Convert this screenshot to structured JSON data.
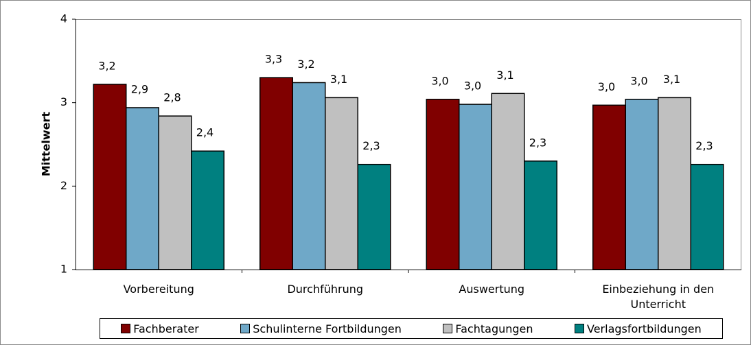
{
  "chart_data": {
    "type": "bar",
    "y_label": "Mittelwert",
    "categories": [
      "Vorbereitung",
      "Durchführung",
      "Auswertung",
      "Einbeziehung in den Unterricht"
    ],
    "series": [
      {
        "name": "Fachberater",
        "color": "#800000",
        "values": [
          3.22,
          3.3,
          3.04,
          2.97
        ],
        "value_labels": [
          "3,2",
          "3,3",
          "3,0",
          "3,0"
        ]
      },
      {
        "name": "Schulinterne Fortbildungen",
        "color": "#6fa8c8",
        "values": [
          2.94,
          3.24,
          2.98,
          3.04
        ],
        "value_labels": [
          "2,9",
          "3,2",
          "3,0",
          "3,0"
        ]
      },
      {
        "name": "Fachtagungen",
        "color": "#c0c0c0",
        "values": [
          2.84,
          3.06,
          3.11,
          3.06
        ],
        "value_labels": [
          "2,8",
          "3,1",
          "3,1",
          "3,1"
        ]
      },
      {
        "name": "Verlagsfortbildungen",
        "color": "#008080",
        "values": [
          2.42,
          2.26,
          2.3,
          2.26
        ],
        "value_labels": [
          "2,4",
          "2,3",
          "2,3",
          "2,3"
        ]
      }
    ],
    "ylim": [
      1,
      4
    ],
    "yticks": [
      1,
      2,
      3,
      4
    ],
    "grid": false,
    "legend": "bottom"
  }
}
